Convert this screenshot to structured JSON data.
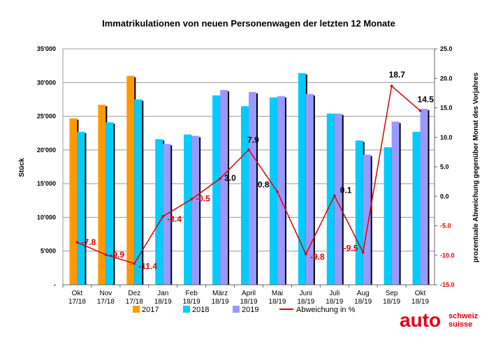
{
  "chart_data": {
    "type": "bar",
    "title": "Immatrikulationen von neuen Personenwagen der letzten 12 Monate",
    "ylabel": "Stück",
    "y2label": "prozentuale Abweichung gegenüber Monat des Vorjahres",
    "ylim": [
      0,
      35000
    ],
    "y2lim": [
      -15,
      25
    ],
    "yticks": [
      "-",
      "5'000",
      "10'000",
      "15'000",
      "20'000",
      "25'000",
      "30'000",
      "35'000"
    ],
    "y2ticks": [
      "-15.0",
      "-10.0",
      "-5.0",
      "0.0",
      "5.0",
      "10.0",
      "15.0",
      "20.0",
      "25.0"
    ],
    "categories": [
      [
        "Okt",
        "17/18"
      ],
      [
        "Nov",
        "17/18"
      ],
      [
        "Dez",
        "17/18"
      ],
      [
        "Jan",
        "18/19"
      ],
      [
        "Feb",
        "18/19"
      ],
      [
        "März",
        "18/19"
      ],
      [
        "April",
        "18/19"
      ],
      [
        "Mai",
        "18/19"
      ],
      [
        "Juni",
        "18/19"
      ],
      [
        "Juli",
        "18/19"
      ],
      [
        "Aug",
        "18/19"
      ],
      [
        "Sep",
        "18/19"
      ],
      [
        "Okt",
        "18/19"
      ]
    ],
    "series": [
      {
        "name": "2017",
        "color": "#FF9900",
        "values": [
          24700,
          26700,
          31000,
          null,
          null,
          null,
          null,
          null,
          null,
          null,
          null,
          null,
          null
        ]
      },
      {
        "name": "2018",
        "color": "#00CCFF",
        "values": [
          22700,
          24100,
          27500,
          21600,
          22300,
          28100,
          26500,
          27800,
          31400,
          25400,
          21400,
          20400,
          22700
        ]
      },
      {
        "name": "2019",
        "color": "#9999FF",
        "values": [
          null,
          null,
          null,
          20900,
          22100,
          28900,
          28600,
          28000,
          28300,
          25400,
          19300,
          24200,
          26100
        ]
      },
      {
        "name": "Abweichung in %",
        "type": "line",
        "axis": "right",
        "color": "#DD0000",
        "values": [
          -7.8,
          -9.9,
          -11.4,
          -3.4,
          -0.5,
          3.0,
          7.9,
          0.8,
          -9.8,
          0.1,
          -9.5,
          18.7,
          14.5
        ],
        "labels": [
          "-7.8",
          "-9.9",
          "-11.4",
          "-3.4",
          "-0.5",
          "3.0",
          "7.9",
          "0.8",
          "-9.8",
          "0.1",
          "-9.5",
          "18.7",
          "14.5"
        ]
      }
    ],
    "grid": true,
    "legend": "bottom"
  },
  "logo": {
    "main": "auto",
    "line1": "schweiz",
    "line2": "suisse",
    "color": "#E2001A"
  }
}
